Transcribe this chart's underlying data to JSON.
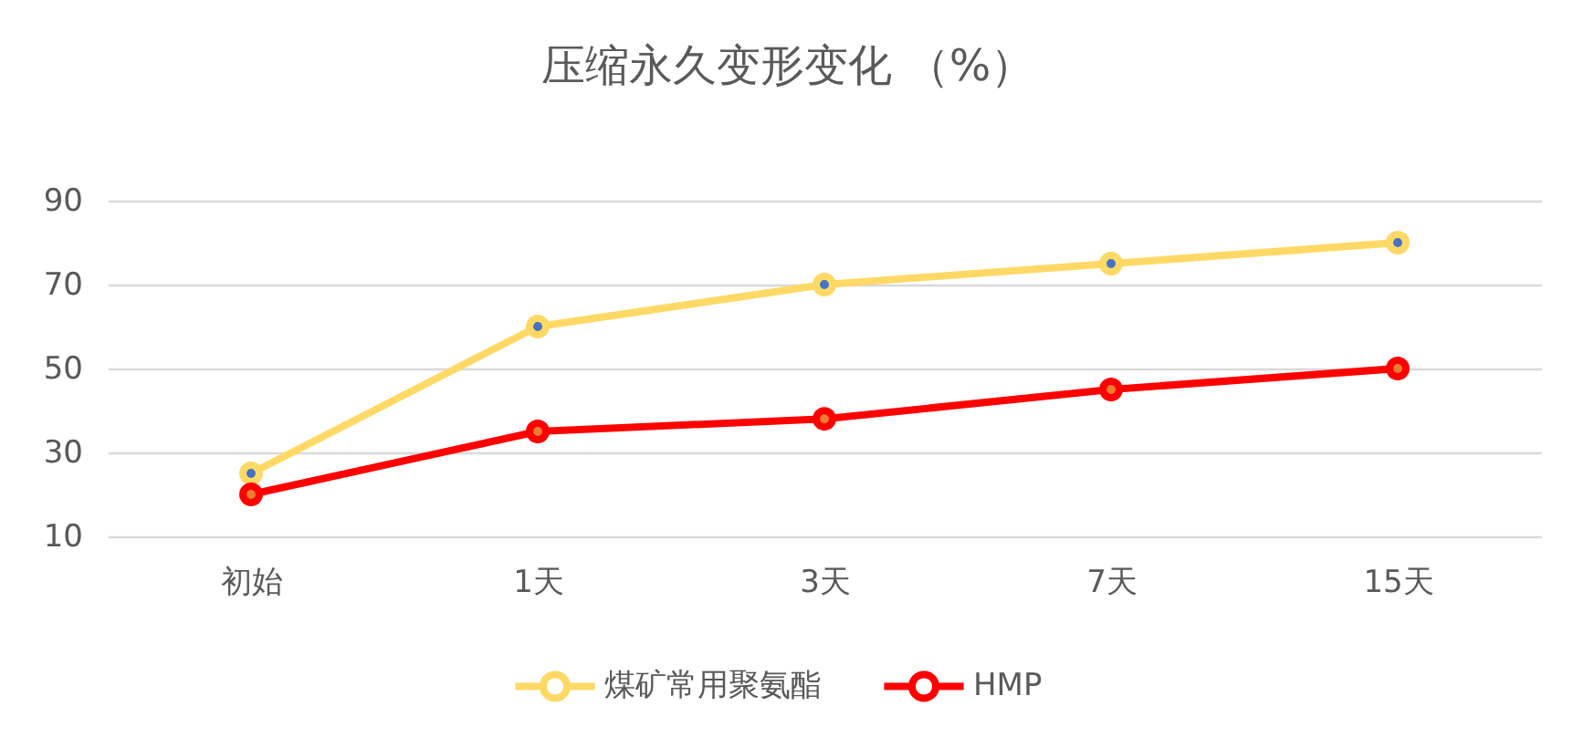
{
  "chart_data": {
    "type": "line",
    "title": "压缩永久变形变化 （%）",
    "categories": [
      "初始",
      "1天",
      "3天",
      "7天",
      "15天"
    ],
    "series": [
      {
        "name": "煤矿常用聚氨酯",
        "color": "#ffd966",
        "values": [
          25,
          60,
          70,
          75,
          80
        ]
      },
      {
        "name": "HMP",
        "color": "#ff0000",
        "values": [
          20,
          35,
          38,
          45,
          50
        ]
      }
    ],
    "ylim": [
      10,
      90
    ],
    "yticks": [
      10,
      30,
      50,
      70,
      90
    ],
    "grid": "y",
    "legend": "bottom",
    "marker": "circle",
    "line_style": "solid"
  }
}
